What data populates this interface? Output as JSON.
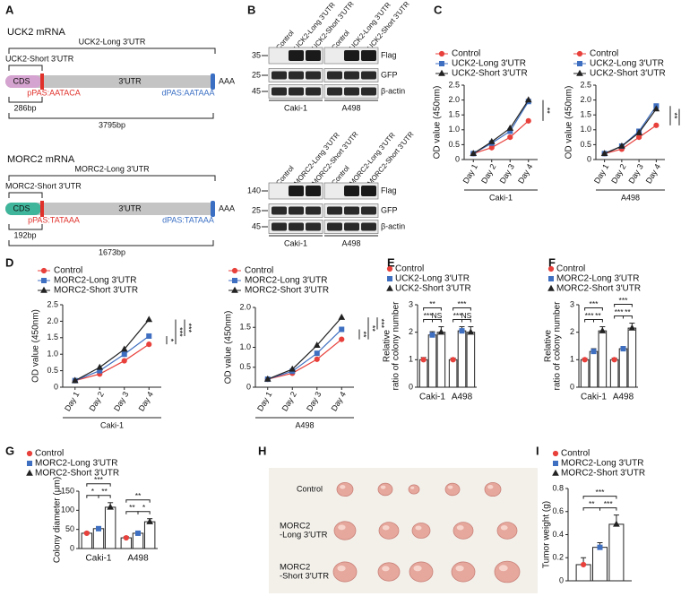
{
  "panel_labels": [
    "A",
    "B",
    "C",
    "D",
    "E",
    "F",
    "G",
    "H",
    "I"
  ],
  "diagram": {
    "uck2": {
      "title": "UCK2 mRNA",
      "long": "UCK2-Long 3′UTR",
      "short": "UCK2-Short 3′UTR",
      "cds": "CDS",
      "utr": "3′UTR",
      "ppas": "pPAS:AATACA",
      "dpas": "dPAS:AATAAA",
      "polya": "AAA",
      "short_len": "286bp",
      "long_len": "3795bp"
    },
    "morc2": {
      "title": "MORC2 mRNA",
      "long": "MORC2-Long 3′UTR",
      "short": "MORC2-Short 3′UTR",
      "cds": "CDS",
      "utr": "3′UTR",
      "ppas": "pPAS:TATAAA",
      "dpas": "dPAS:TATAAA",
      "polya": "AAA",
      "short_len": "192bp",
      "long_len": "1673bp"
    }
  },
  "blots": [
    {
      "lanes": [
        "Control",
        "UCK2-Long 3′UTR",
        "UCK2-Short 3′UTR"
      ],
      "markers": [
        "35",
        "25",
        "45"
      ],
      "bands": [
        "Flag",
        "GFP",
        "β-actin"
      ],
      "cells": [
        "Caki-1",
        "A498"
      ]
    },
    {
      "lanes": [
        "Control",
        "MORC2-Long 3′UTR",
        "MORC2-Short 3′UTR"
      ],
      "markers": [
        "140",
        "25",
        "45"
      ],
      "bands": [
        "Flag",
        "GFP",
        "β-actin"
      ],
      "cells": [
        "Caki-1",
        "A498"
      ]
    }
  ],
  "photo": {
    "rows": [
      [
        "Control"
      ],
      [
        "MORC2",
        "-Long 3′UTR"
      ],
      [
        "MORC2",
        "-Short 3′UTR"
      ]
    ]
  },
  "chart_data": [
    {
      "type": "line",
      "categories": [
        "Day 1",
        "Day 2",
        "Day 3",
        "Day 4"
      ],
      "xlabel": "Caki-1",
      "ylabel": "OD value (450nm)",
      "ylim": [
        0,
        2.5
      ],
      "yticks": [
        0,
        0.5,
        {
          "value": 1,
          "label": "1.0"
        },
        1.5,
        {
          "value": 2,
          "label": "2.0"
        },
        2.5
      ],
      "series": [
        {
          "name": "Control",
          "color": "#e8413c",
          "marker": "circle",
          "values": [
            0.2,
            0.4,
            0.75,
            1.3
          ]
        },
        {
          "name": "UCK2-Long 3′UTR",
          "color": "#3f6fc0",
          "marker": "square",
          "values": [
            0.2,
            0.55,
            0.95,
            1.95
          ]
        },
        {
          "name": "UCK2-Short 3′UTR",
          "color": "#222222",
          "marker": "triangle",
          "values": [
            0.2,
            0.6,
            1.05,
            2.0
          ]
        }
      ],
      "annotations": [
        "**"
      ]
    },
    {
      "type": "line",
      "categories": [
        "Day 1",
        "Day 2",
        "Day 3",
        "Day 4"
      ],
      "xlabel": "A498",
      "ylabel": "OD value (450nm)",
      "ylim": [
        0,
        2.5
      ],
      "yticks": [
        0,
        0.5,
        {
          "value": 1,
          "label": "1.0"
        },
        1.5,
        {
          "value": 2,
          "label": "2.0"
        },
        2.5
      ],
      "series": [
        {
          "name": "Control",
          "color": "#e8413c",
          "marker": "circle",
          "values": [
            0.2,
            0.35,
            0.75,
            1.15
          ]
        },
        {
          "name": "UCK2-Long 3′UTR",
          "color": "#3f6fc0",
          "marker": "square",
          "values": [
            0.2,
            0.45,
            0.95,
            1.8
          ]
        },
        {
          "name": "UCK2-Short 3′UTR",
          "color": "#222222",
          "marker": "triangle",
          "values": [
            0.2,
            0.45,
            0.9,
            1.7
          ]
        }
      ],
      "annotations": [
        "**",
        "**"
      ]
    },
    {
      "type": "line",
      "categories": [
        "Day 1",
        "Day 2",
        "Day 3",
        "Day 4"
      ],
      "xlabel": "Caki-1",
      "ylabel": "OD value (450nm)",
      "ylim": [
        0,
        2.5
      ],
      "yticks": [
        0,
        0.5,
        {
          "value": 1,
          "label": "1.0"
        },
        1.5,
        {
          "value": 2,
          "label": "2.0"
        },
        2.5
      ],
      "series": [
        {
          "name": "Control",
          "color": "#e8413c",
          "marker": "circle",
          "values": [
            0.2,
            0.4,
            0.8,
            1.3
          ]
        },
        {
          "name": "MORC2-Long 3′UTR",
          "color": "#3f6fc0",
          "marker": "square",
          "values": [
            0.2,
            0.5,
            1.0,
            1.55
          ]
        },
        {
          "name": "MORC2-Short 3′UTR",
          "color": "#222222",
          "marker": "triangle",
          "values": [
            0.2,
            0.6,
            1.15,
            2.05
          ]
        }
      ],
      "annotations": [
        "*",
        "***",
        "***"
      ]
    },
    {
      "type": "line",
      "categories": [
        "Day 1",
        "Day 2",
        "Day 3",
        "Day 4"
      ],
      "xlabel": "A498",
      "ylabel": "OD value (450nm)",
      "ylim": [
        0,
        2
      ],
      "yticks": [
        0,
        0.5,
        {
          "value": 1,
          "label": "1.0"
        },
        1.5,
        {
          "value": 2,
          "label": "2.0"
        }
      ],
      "series": [
        {
          "name": "Control",
          "color": "#e8413c",
          "marker": "circle",
          "values": [
            0.2,
            0.35,
            0.7,
            1.2
          ]
        },
        {
          "name": "MORC2-Long 3′UTR",
          "color": "#3f6fc0",
          "marker": "square",
          "values": [
            0.2,
            0.4,
            0.85,
            1.45
          ]
        },
        {
          "name": "MORC2-Short 3′UTR",
          "color": "#222222",
          "marker": "triangle",
          "values": [
            0.2,
            0.45,
            1.05,
            1.75
          ]
        }
      ],
      "annotations": [
        "**",
        "**",
        "***"
      ]
    },
    {
      "type": "bar",
      "categories": [
        "Caki-1",
        "A498"
      ],
      "ylabel": [
        "Relative",
        "ratio of colony number"
      ],
      "ylim": [
        0,
        3
      ],
      "yticks": [
        0,
        1,
        2,
        3
      ],
      "series": [
        {
          "name": "Control",
          "color": "#e8413c",
          "marker": "circle",
          "values": [
            1.0,
            1.0
          ],
          "errors": [
            0.08,
            0.06
          ]
        },
        {
          "name": "UCK2-Long 3′UTR",
          "color": "#3f6fc0",
          "marker": "square",
          "values": [
            1.9,
            2.05
          ],
          "errors": [
            0.12,
            0.15
          ]
        },
        {
          "name": "UCK2-Short 3′UTR",
          "color": "#222222",
          "marker": "triangle",
          "values": [
            2.0,
            2.0
          ],
          "errors": [
            0.2,
            0.2
          ]
        }
      ],
      "annotations": [
        "**",
        "***",
        "NS",
        "***",
        "***",
        "NS"
      ]
    },
    {
      "type": "bar",
      "categories": [
        "Caki-1",
        "A498"
      ],
      "ylabel": [
        "Relative",
        "ratio of colony number"
      ],
      "ylim": [
        0,
        3
      ],
      "yticks": [
        0,
        1,
        2,
        3
      ],
      "series": [
        {
          "name": "Control",
          "color": "#e8413c",
          "marker": "circle",
          "values": [
            1.0,
            1.0
          ],
          "errors": [
            0.05,
            0.06
          ]
        },
        {
          "name": "MORC2-Long 3′UTR",
          "color": "#3f6fc0",
          "marker": "square",
          "values": [
            1.3,
            1.4
          ],
          "errors": [
            0.1,
            0.08
          ]
        },
        {
          "name": "MORC2-Short 3′UTR",
          "color": "#222222",
          "marker": "triangle",
          "values": [
            2.05,
            2.15
          ],
          "errors": [
            0.15,
            0.18
          ]
        }
      ],
      "annotations": [
        "***",
        "***",
        "**",
        "***",
        "***",
        "**"
      ]
    },
    {
      "type": "bar",
      "categories": [
        "Caki-1",
        "A498"
      ],
      "ylabel": [
        "Colony diameter (μm)"
      ],
      "ylim": [
        0,
        150
      ],
      "yticks": [
        0,
        50,
        100,
        150
      ],
      "series": [
        {
          "name": "Control",
          "color": "#e8413c",
          "marker": "circle",
          "values": [
            40,
            28
          ],
          "errors": [
            3,
            3
          ]
        },
        {
          "name": "MORC2-Long 3′UTR",
          "color": "#3f6fc0",
          "marker": "square",
          "values": [
            52,
            40
          ],
          "errors": [
            5,
            5
          ]
        },
        {
          "name": "MORC2-Short 3′UTR",
          "color": "#222222",
          "marker": "triangle",
          "values": [
            108,
            70
          ],
          "errors": [
            12,
            8
          ]
        }
      ],
      "annotations": [
        "***",
        "*",
        "**",
        "**",
        "**",
        "*"
      ]
    },
    {
      "type": "bar",
      "categories": [
        null
      ],
      "ylabel": [
        "Tumor weight (g)"
      ],
      "ylim": [
        0,
        0.8
      ],
      "yticks": [
        0,
        0.2,
        0.4,
        0.6,
        0.8
      ],
      "series": [
        {
          "name": "Control",
          "color": "#e8413c",
          "marker": "circle",
          "values": [
            0.14
          ],
          "errors": [
            0.06
          ]
        },
        {
          "name": "MORC2-Long 3′UTR",
          "color": "#3f6fc0",
          "marker": "square",
          "values": [
            0.29
          ],
          "errors": [
            0.04
          ]
        },
        {
          "name": "MORC2-Short 3′UTR",
          "color": "#222222",
          "marker": "triangle",
          "values": [
            0.49
          ],
          "errors": [
            0.08
          ]
        }
      ],
      "annotations": [
        "***",
        "**",
        "***"
      ]
    }
  ]
}
